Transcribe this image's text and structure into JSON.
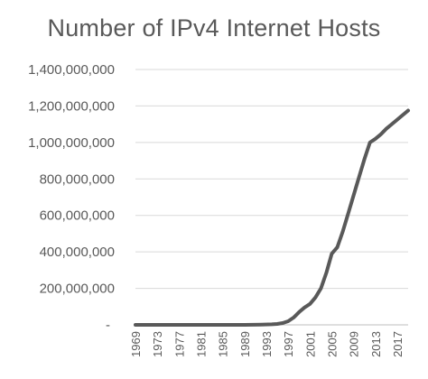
{
  "chart_data": {
    "type": "line",
    "title": "Number of IPv4 Internet Hosts",
    "xlabel": "",
    "ylabel": "",
    "ylim": [
      0,
      1400000000
    ],
    "xlim": [
      1969,
      2019
    ],
    "y_ticks": [
      0,
      200000000,
      400000000,
      600000000,
      800000000,
      1000000000,
      1200000000,
      1400000000
    ],
    "y_tick_labels": [
      "-",
      "200,000,000",
      "400,000,000",
      "600,000,000",
      "800,000,000",
      "1,000,000,000",
      "1,200,000,000",
      "1,400,000,000"
    ],
    "x_tick_labels": [
      "1969",
      "1973",
      "1977",
      "1981",
      "1985",
      "1989",
      "1993",
      "1997",
      "2001",
      "2005",
      "2009",
      "2013",
      "2017"
    ],
    "grid": true,
    "legend": "none",
    "line_color": "#595959",
    "series": [
      {
        "x": [
          1969,
          1975,
          1981,
          1985,
          1989,
          1992,
          1994,
          1995,
          1996,
          1997,
          1998,
          1999,
          2000,
          2001,
          2002,
          2003,
          2004,
          2005,
          2006,
          2007,
          2008,
          2009,
          2010,
          2011,
          2012,
          2013,
          2014,
          2015,
          2016,
          2017,
          2018,
          2019
        ],
        "values": [
          0,
          0,
          0,
          0,
          0,
          1000000,
          3000000,
          5000000,
          10000000,
          20000000,
          40000000,
          70000000,
          95000000,
          115000000,
          150000000,
          200000000,
          285000000,
          390000000,
          425000000,
          510000000,
          610000000,
          710000000,
          810000000,
          910000000,
          1000000000,
          1020000000,
          1045000000,
          1075000000,
          1100000000,
          1125000000,
          1150000000,
          1175000000
        ]
      }
    ]
  }
}
